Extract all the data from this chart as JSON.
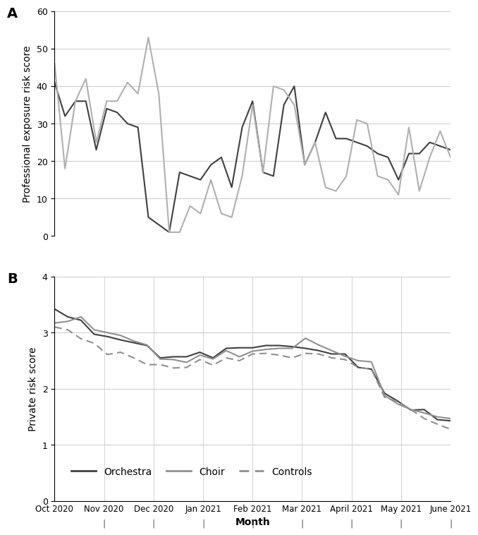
{
  "panel_A": {
    "title": "A",
    "ylabel": "Professional exposure risk score",
    "ylim": [
      0,
      60
    ],
    "yticks": [
      0,
      10,
      20,
      30,
      40,
      50,
      60
    ],
    "orchestra": [
      41,
      32,
      36,
      36,
      23,
      34,
      33,
      30,
      29,
      5,
      3,
      1,
      17,
      16,
      15,
      19,
      21,
      13,
      29,
      36,
      17,
      16,
      35,
      40,
      19,
      25,
      33,
      26,
      26,
      25,
      24,
      22,
      21,
      15,
      22,
      22,
      25,
      24,
      23
    ],
    "choir": [
      46,
      18,
      36,
      42,
      25,
      36,
      36,
      41,
      38,
      53,
      38,
      1,
      1,
      8,
      6,
      15,
      6,
      5,
      16,
      35,
      17,
      40,
      39,
      35,
      19,
      25,
      13,
      12,
      16,
      31,
      30,
      16,
      15,
      11,
      29,
      12,
      21,
      28,
      21
    ],
    "orchestra_color": "#404040",
    "choir_color": "#b0b0b0"
  },
  "panel_B": {
    "title": "B",
    "ylabel": "Private risk score",
    "ylim": [
      0,
      4
    ],
    "yticks": [
      0,
      1,
      2,
      3,
      4
    ],
    "orchestra": [
      3.42,
      3.28,
      3.22,
      2.97,
      2.93,
      2.87,
      2.82,
      2.77,
      2.55,
      2.57,
      2.57,
      2.65,
      2.55,
      2.72,
      2.73,
      2.73,
      2.77,
      2.77,
      2.75,
      2.72,
      2.68,
      2.62,
      2.62,
      2.38,
      2.35,
      1.92,
      1.78,
      1.62,
      1.63,
      1.45,
      1.43
    ],
    "choir": [
      3.17,
      3.2,
      3.28,
      3.05,
      3.0,
      2.95,
      2.85,
      2.78,
      2.53,
      2.52,
      2.47,
      2.6,
      2.53,
      2.68,
      2.57,
      2.67,
      2.7,
      2.72,
      2.72,
      2.9,
      2.78,
      2.68,
      2.58,
      2.5,
      2.48,
      1.88,
      1.73,
      1.63,
      1.57,
      1.5,
      1.47
    ],
    "controls": [
      3.1,
      3.05,
      2.89,
      2.81,
      2.61,
      2.65,
      2.55,
      2.43,
      2.43,
      2.37,
      2.38,
      2.52,
      2.42,
      2.55,
      2.5,
      2.62,
      2.63,
      2.6,
      2.55,
      2.63,
      2.62,
      2.55,
      2.52,
      2.38,
      2.35,
      1.85,
      1.77,
      1.63,
      1.47,
      1.37,
      1.28
    ],
    "orchestra_color": "#404040",
    "choir_color": "#909090",
    "controls_color": "#909090"
  },
  "xtick_labels": [
    "Oct 2020",
    "Nov 2020",
    "Dec 2020",
    "Jan 2021",
    "Feb 2021",
    "Mar 2021",
    "April 2021",
    "May 2021",
    "June 2021"
  ],
  "xlabel": "Month",
  "n_points_A": 39,
  "n_points_B": 31
}
